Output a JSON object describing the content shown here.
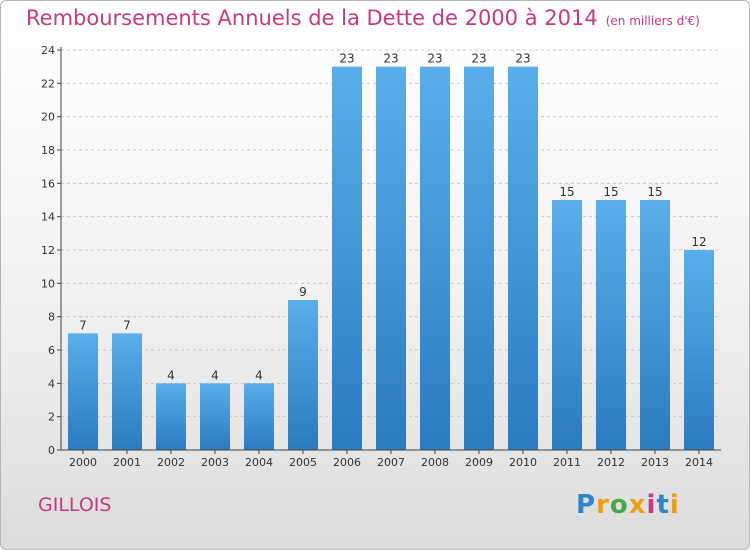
{
  "header": {
    "title": "Remboursements Annuels de la Dette de 2000 à 2014",
    "unit": "(en milliers d'€)"
  },
  "footer": {
    "commune": "GILLOIS",
    "logo_text": "Proxiti"
  },
  "colors": {
    "title": "#c53a80",
    "bar_top": "#5aaeea",
    "bar_bottom": "#2b7bbf",
    "axis": "#444444",
    "grid": "#c8c8c8"
  },
  "chart_data": {
    "type": "bar",
    "categories": [
      "2000",
      "2001",
      "2002",
      "2003",
      "2004",
      "2005",
      "2006",
      "2007",
      "2008",
      "2009",
      "2010",
      "2011",
      "2012",
      "2013",
      "2014"
    ],
    "values": [
      7,
      7,
      4,
      4,
      4,
      9,
      23,
      23,
      23,
      23,
      23,
      15,
      15,
      15,
      12
    ],
    "ylim": [
      0,
      24
    ],
    "yticks": [
      0,
      2,
      4,
      6,
      8,
      10,
      12,
      14,
      16,
      18,
      20,
      22,
      24
    ],
    "grid": true,
    "legend": "none"
  }
}
